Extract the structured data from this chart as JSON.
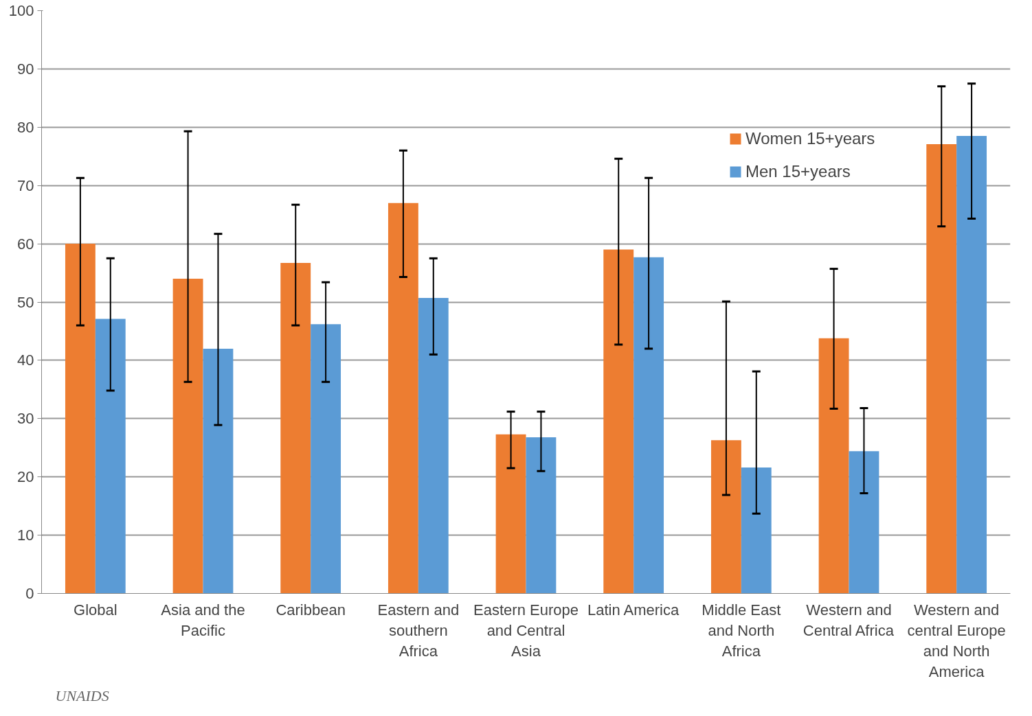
{
  "chart_data": {
    "type": "bar",
    "categories": [
      "Global",
      "Asia and the Pacific",
      "Caribbean",
      "Eastern and southern Africa",
      "Eastern Europe and Central Asia",
      "Latin America",
      "Middle East and North Africa",
      "Western and Central Africa",
      "Western and central Europe and North America"
    ],
    "series": [
      {
        "name": "Women 15+years",
        "color": "#ed7d31",
        "values": [
          60,
          54,
          56.7,
          67,
          27.3,
          59,
          26.3,
          43.8,
          77.1
        ],
        "errors": [
          [
            46,
            71.3
          ],
          [
            36.3,
            79.3
          ],
          [
            46,
            66.7
          ],
          [
            54.3,
            76
          ],
          [
            21.5,
            31.2
          ],
          [
            42.7,
            74.6
          ],
          [
            16.9,
            50.1
          ],
          [
            31.7,
            55.7
          ],
          [
            63,
            87
          ]
        ]
      },
      {
        "name": "Men 15+years",
        "color": "#5b9bd5",
        "values": [
          47.1,
          42,
          46.2,
          50.7,
          26.8,
          57.7,
          21.6,
          24.4,
          78.5
        ],
        "errors": [
          [
            34.8,
            57.5
          ],
          [
            28.9,
            61.7
          ],
          [
            36.3,
            53.4
          ],
          [
            41,
            57.5
          ],
          [
            21,
            31.2
          ],
          [
            42,
            71.3
          ],
          [
            13.7,
            38.1
          ],
          [
            17.2,
            31.8
          ],
          [
            64.3,
            87.5
          ]
        ]
      }
    ],
    "ylim": [
      0,
      100
    ],
    "yticks": [
      0,
      10,
      20,
      30,
      40,
      50,
      60,
      70,
      80,
      90,
      100
    ],
    "grid": "y",
    "legend": "top right",
    "annotations": [
      "UNAIDS"
    ]
  }
}
